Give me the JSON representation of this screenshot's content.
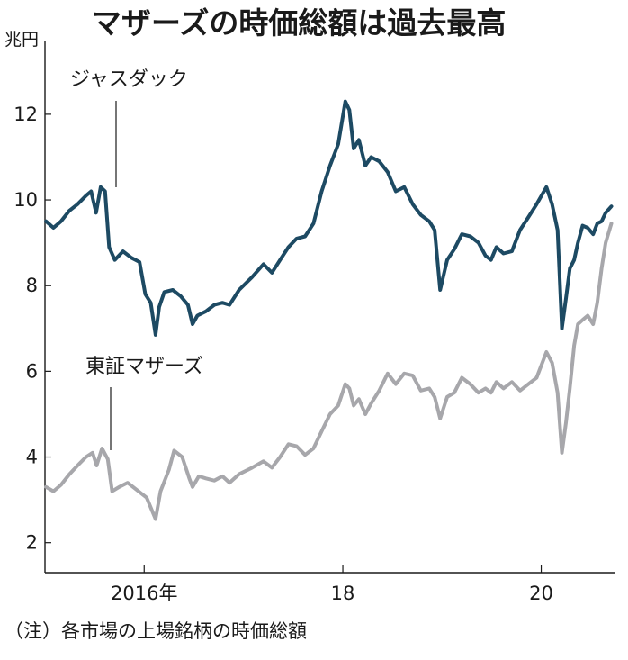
{
  "chart_data": {
    "type": "line",
    "title": "マザーズの時価総額は過去最高",
    "y_unit": "兆円",
    "ylim": [
      1.3,
      13.7
    ],
    "y_ticks": [
      2,
      4,
      6,
      8,
      10,
      12
    ],
    "xlim": [
      "2015-01-01",
      "2020-09-30"
    ],
    "x_ticks": [
      {
        "date": "2016-01-01",
        "label": "2016年"
      },
      {
        "date": "2018-01-01",
        "label": "18"
      },
      {
        "date": "2020-01-01",
        "label": "20"
      }
    ],
    "grid": false,
    "legend": "inline labels",
    "note": "（注）各市場の上場銘柄の時価総額",
    "series": [
      {
        "name": "ジャスダック",
        "color": "#1d4a63",
        "points": [
          [
            "2015-01-05",
            9.5
          ],
          [
            "2015-02-01",
            9.35
          ],
          [
            "2015-03-01",
            9.5
          ],
          [
            "2015-04-01",
            9.75
          ],
          [
            "2015-05-01",
            9.9
          ],
          [
            "2015-06-01",
            10.1
          ],
          [
            "2015-06-20",
            10.2
          ],
          [
            "2015-07-08",
            9.7
          ],
          [
            "2015-07-25",
            10.3
          ],
          [
            "2015-08-10",
            10.2
          ],
          [
            "2015-08-25",
            8.9
          ],
          [
            "2015-09-15",
            8.6
          ],
          [
            "2015-10-15",
            8.8
          ],
          [
            "2015-11-15",
            8.65
          ],
          [
            "2015-12-15",
            8.55
          ],
          [
            "2016-01-05",
            7.8
          ],
          [
            "2016-01-25",
            7.6
          ],
          [
            "2016-02-12",
            6.85
          ],
          [
            "2016-02-25",
            7.5
          ],
          [
            "2016-03-15",
            7.85
          ],
          [
            "2016-04-15",
            7.9
          ],
          [
            "2016-05-15",
            7.75
          ],
          [
            "2016-06-10",
            7.55
          ],
          [
            "2016-06-27",
            7.1
          ],
          [
            "2016-07-15",
            7.3
          ],
          [
            "2016-08-15",
            7.4
          ],
          [
            "2016-09-15",
            7.55
          ],
          [
            "2016-10-15",
            7.6
          ],
          [
            "2016-11-10",
            7.55
          ],
          [
            "2016-12-15",
            7.9
          ],
          [
            "2017-02-01",
            8.2
          ],
          [
            "2017-03-15",
            8.5
          ],
          [
            "2017-04-15",
            8.3
          ],
          [
            "2017-05-15",
            8.6
          ],
          [
            "2017-06-15",
            8.9
          ],
          [
            "2017-07-15",
            9.1
          ],
          [
            "2017-08-15",
            9.15
          ],
          [
            "2017-09-15",
            9.45
          ],
          [
            "2017-10-15",
            10.2
          ],
          [
            "2017-11-15",
            10.8
          ],
          [
            "2017-12-15",
            11.3
          ],
          [
            "2018-01-10",
            12.3
          ],
          [
            "2018-01-25",
            12.1
          ],
          [
            "2018-02-10",
            11.2
          ],
          [
            "2018-03-01",
            11.4
          ],
          [
            "2018-03-25",
            10.8
          ],
          [
            "2018-04-15",
            11.0
          ],
          [
            "2018-05-15",
            10.9
          ],
          [
            "2018-06-15",
            10.65
          ],
          [
            "2018-07-15",
            10.2
          ],
          [
            "2018-08-15",
            10.3
          ],
          [
            "2018-09-15",
            9.9
          ],
          [
            "2018-10-15",
            9.65
          ],
          [
            "2018-11-15",
            9.5
          ],
          [
            "2018-12-05",
            9.3
          ],
          [
            "2018-12-25",
            7.9
          ],
          [
            "2019-01-20",
            8.6
          ],
          [
            "2019-02-15",
            8.85
          ],
          [
            "2019-03-15",
            9.2
          ],
          [
            "2019-04-15",
            9.15
          ],
          [
            "2019-05-15",
            9.0
          ],
          [
            "2019-06-10",
            8.7
          ],
          [
            "2019-06-30",
            8.6
          ],
          [
            "2019-07-20",
            8.9
          ],
          [
            "2019-08-15",
            8.75
          ],
          [
            "2019-09-15",
            8.8
          ],
          [
            "2019-10-15",
            9.3
          ],
          [
            "2019-11-15",
            9.6
          ],
          [
            "2019-12-15",
            9.9
          ],
          [
            "2020-01-20",
            10.3
          ],
          [
            "2020-02-10",
            9.9
          ],
          [
            "2020-03-01",
            9.3
          ],
          [
            "2020-03-17",
            7.0
          ],
          [
            "2020-04-01",
            7.7
          ],
          [
            "2020-04-15",
            8.4
          ],
          [
            "2020-05-01",
            8.6
          ],
          [
            "2020-05-15",
            9.0
          ],
          [
            "2020-06-01",
            9.4
          ],
          [
            "2020-06-20",
            9.35
          ],
          [
            "2020-07-10",
            9.2
          ],
          [
            "2020-07-25",
            9.45
          ],
          [
            "2020-08-10",
            9.5
          ],
          [
            "2020-08-25",
            9.7
          ],
          [
            "2020-09-15",
            9.85
          ]
        ]
      },
      {
        "name": "東証マザーズ",
        "color": "#a7a7ab",
        "points": [
          [
            "2015-01-05",
            3.3
          ],
          [
            "2015-02-01",
            3.2
          ],
          [
            "2015-03-01",
            3.35
          ],
          [
            "2015-04-01",
            3.6
          ],
          [
            "2015-05-01",
            3.8
          ],
          [
            "2015-06-01",
            4.0
          ],
          [
            "2015-06-25",
            4.1
          ],
          [
            "2015-07-10",
            3.8
          ],
          [
            "2015-07-30",
            4.2
          ],
          [
            "2015-08-20",
            3.95
          ],
          [
            "2015-09-05",
            3.2
          ],
          [
            "2015-10-01",
            3.3
          ],
          [
            "2015-11-01",
            3.4
          ],
          [
            "2015-12-01",
            3.25
          ],
          [
            "2016-01-10",
            3.05
          ],
          [
            "2016-02-12",
            2.55
          ],
          [
            "2016-03-01",
            3.2
          ],
          [
            "2016-04-01",
            3.7
          ],
          [
            "2016-04-20",
            4.15
          ],
          [
            "2016-05-20",
            4.0
          ],
          [
            "2016-06-15",
            3.5
          ],
          [
            "2016-06-27",
            3.3
          ],
          [
            "2016-07-20",
            3.55
          ],
          [
            "2016-08-15",
            3.5
          ],
          [
            "2016-09-15",
            3.45
          ],
          [
            "2016-10-15",
            3.55
          ],
          [
            "2016-11-10",
            3.4
          ],
          [
            "2016-12-15",
            3.6
          ],
          [
            "2017-02-01",
            3.75
          ],
          [
            "2017-03-15",
            3.9
          ],
          [
            "2017-04-15",
            3.75
          ],
          [
            "2017-05-15",
            4.0
          ],
          [
            "2017-06-15",
            4.3
          ],
          [
            "2017-07-15",
            4.25
          ],
          [
            "2017-08-15",
            4.05
          ],
          [
            "2017-09-15",
            4.2
          ],
          [
            "2017-10-15",
            4.6
          ],
          [
            "2017-11-15",
            5.0
          ],
          [
            "2017-12-15",
            5.2
          ],
          [
            "2018-01-10",
            5.7
          ],
          [
            "2018-01-25",
            5.6
          ],
          [
            "2018-02-10",
            5.2
          ],
          [
            "2018-03-01",
            5.35
          ],
          [
            "2018-03-25",
            5.0
          ],
          [
            "2018-04-15",
            5.25
          ],
          [
            "2018-05-15",
            5.55
          ],
          [
            "2018-06-15",
            5.95
          ],
          [
            "2018-07-15",
            5.7
          ],
          [
            "2018-08-15",
            5.95
          ],
          [
            "2018-09-15",
            5.9
          ],
          [
            "2018-10-15",
            5.55
          ],
          [
            "2018-11-15",
            5.6
          ],
          [
            "2018-12-05",
            5.4
          ],
          [
            "2018-12-25",
            4.9
          ],
          [
            "2019-01-20",
            5.4
          ],
          [
            "2019-02-15",
            5.5
          ],
          [
            "2019-03-15",
            5.85
          ],
          [
            "2019-04-15",
            5.7
          ],
          [
            "2019-05-15",
            5.5
          ],
          [
            "2019-06-10",
            5.6
          ],
          [
            "2019-06-30",
            5.5
          ],
          [
            "2019-07-20",
            5.75
          ],
          [
            "2019-08-15",
            5.6
          ],
          [
            "2019-09-15",
            5.75
          ],
          [
            "2019-10-15",
            5.55
          ],
          [
            "2019-11-15",
            5.7
          ],
          [
            "2019-12-15",
            5.85
          ],
          [
            "2020-01-20",
            6.45
          ],
          [
            "2020-02-10",
            6.2
          ],
          [
            "2020-03-01",
            5.5
          ],
          [
            "2020-03-17",
            4.1
          ],
          [
            "2020-04-01",
            4.8
          ],
          [
            "2020-04-15",
            5.6
          ],
          [
            "2020-05-01",
            6.6
          ],
          [
            "2020-05-15",
            7.1
          ],
          [
            "2020-06-01",
            7.2
          ],
          [
            "2020-06-20",
            7.3
          ],
          [
            "2020-07-10",
            7.1
          ],
          [
            "2020-07-25",
            7.6
          ],
          [
            "2020-08-10",
            8.4
          ],
          [
            "2020-08-25",
            9.0
          ],
          [
            "2020-09-15",
            9.45
          ]
        ]
      }
    ]
  }
}
